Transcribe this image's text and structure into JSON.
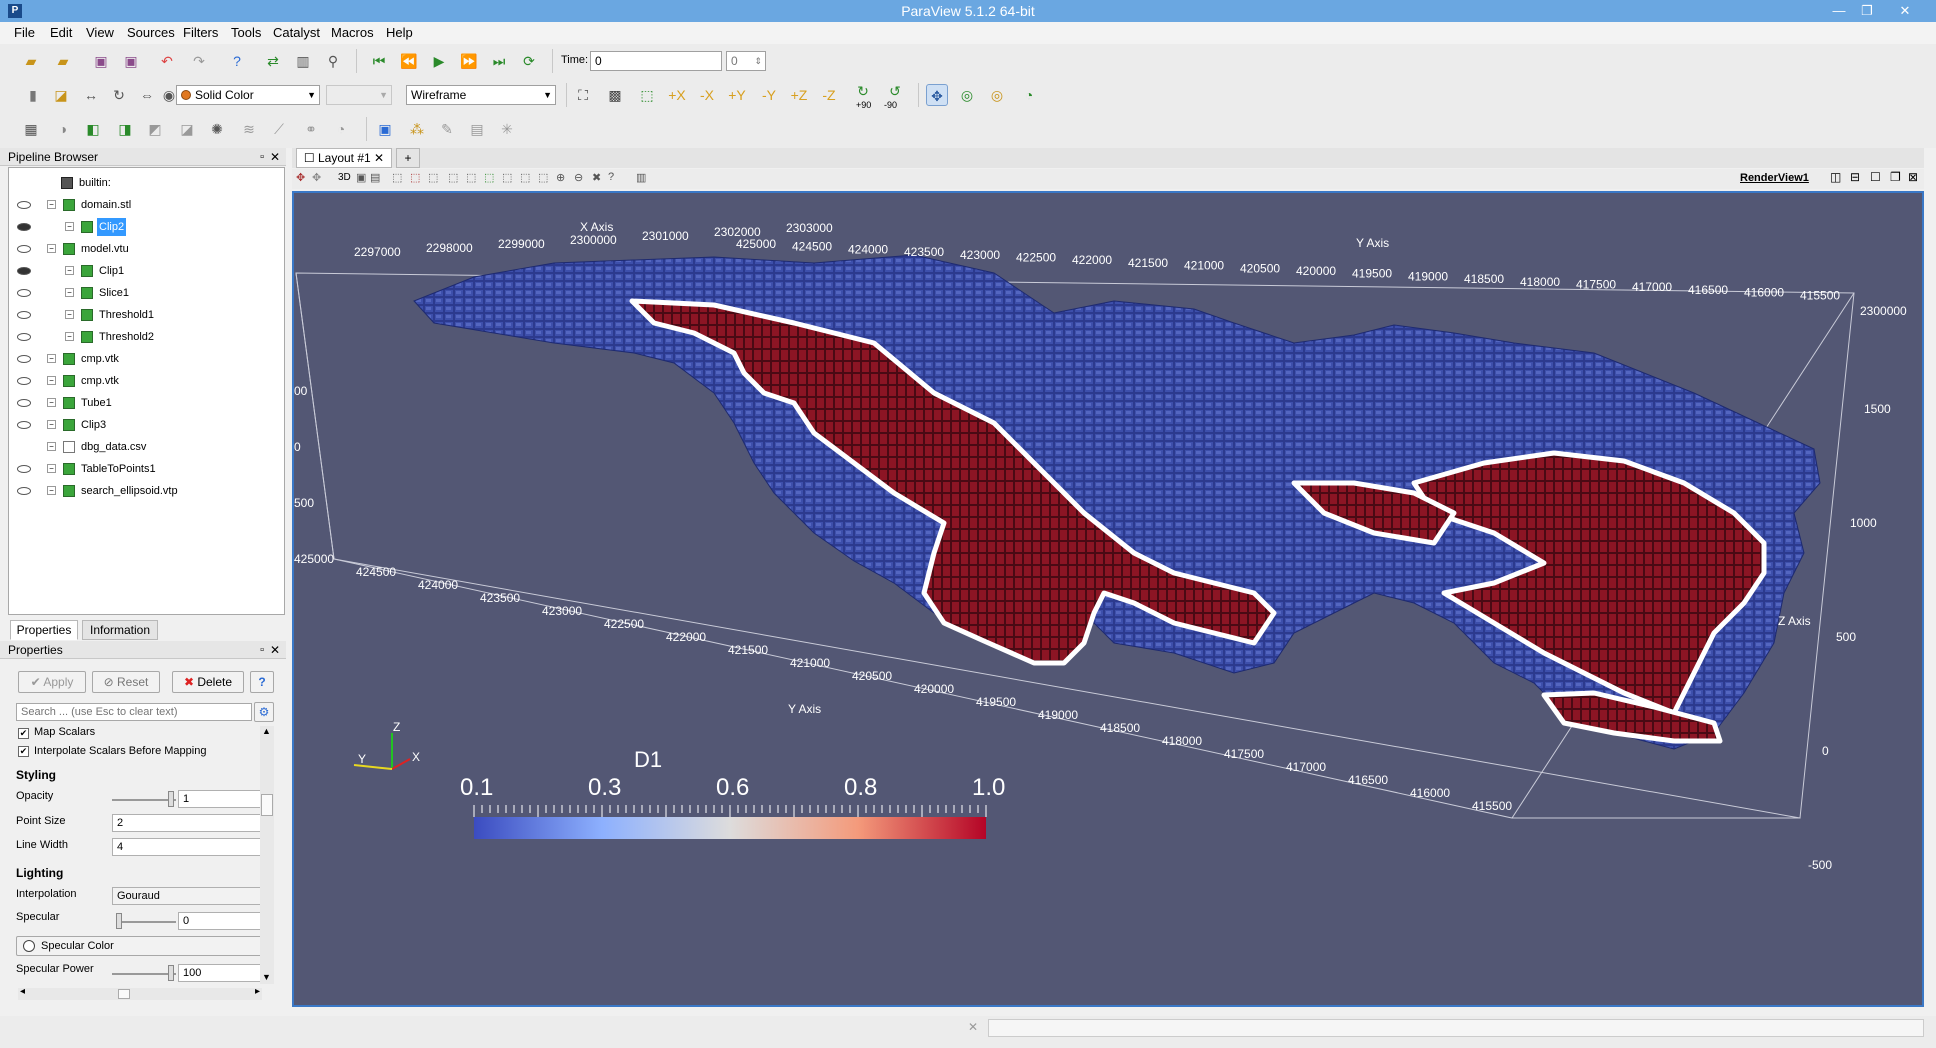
{
  "window": {
    "title": "ParaView 5.1.2 64-bit",
    "minimize": "—",
    "maximize": "❐",
    "close": "✕"
  },
  "menu": [
    "File",
    "Edit",
    "View",
    "Sources",
    "Filters",
    "Tools",
    "Catalyst",
    "Macros",
    "Help"
  ],
  "toolbar": {
    "time_label": "Time:",
    "time_value": "0",
    "time_step": "0",
    "color_by": "Solid Color",
    "representation": "Wireframe",
    "rot_plus": "+90",
    "rot_minus": "-90"
  },
  "pipeline": {
    "title": "Pipeline Browser",
    "items": [
      {
        "label": "builtin:",
        "indent": 0,
        "eye": "none"
      },
      {
        "label": "domain.stl",
        "indent": 1,
        "eye": "off"
      },
      {
        "label": "Clip2",
        "indent": 2,
        "eye": "on",
        "selected": true
      },
      {
        "label": "model.vtu",
        "indent": 1,
        "eye": "off"
      },
      {
        "label": "Clip1",
        "indent": 2,
        "eye": "on"
      },
      {
        "label": "Slice1",
        "indent": 2,
        "eye": "off"
      },
      {
        "label": "Threshold1",
        "indent": 2,
        "eye": "off"
      },
      {
        "label": "Threshold2",
        "indent": 2,
        "eye": "off"
      },
      {
        "label": "cmp.vtk",
        "indent": 1,
        "eye": "off"
      },
      {
        "label": "cmp.vtk",
        "indent": 1,
        "eye": "off"
      },
      {
        "label": "Tube1",
        "indent": 1,
        "eye": "off"
      },
      {
        "label": "Clip3",
        "indent": 1,
        "eye": "off"
      },
      {
        "label": "dbg_data.csv",
        "indent": 1,
        "eye": "none"
      },
      {
        "label": "TableToPoints1",
        "indent": 1,
        "eye": "off"
      },
      {
        "label": "search_ellipsoid.vtp",
        "indent": 1,
        "eye": "off"
      }
    ]
  },
  "tabs": {
    "properties": "Properties",
    "information": "Information"
  },
  "properties": {
    "title": "Properties",
    "apply": "Apply",
    "reset": "Reset",
    "delete": "Delete",
    "help": "?",
    "search_placeholder": "Search ... (use Esc to clear text)",
    "map_scalars": "Map Scalars",
    "interpolate": "Interpolate Scalars Before Mapping",
    "styling": "Styling",
    "opacity_label": "Opacity",
    "opacity": "1",
    "point_size_label": "Point Size",
    "point_size": "2",
    "line_width_label": "Line Width",
    "line_width": "4",
    "lighting": "Lighting",
    "interpolation_label": "Interpolation",
    "interpolation": "Gouraud",
    "specular_label": "Specular",
    "specular": "0",
    "specular_color": "Specular Color",
    "specular_power_label": "Specular Power",
    "specular_power": "100"
  },
  "layout": {
    "tab": "Layout #1",
    "add": "+",
    "view_name": "RenderView1",
    "mode_3d": "3D"
  },
  "render": {
    "x_axis_title": "X Axis",
    "y_axis_title": "Y Axis",
    "z_axis_title": "Z Axis",
    "x_ticks_top": [
      "2297000",
      "2298000",
      "2299000",
      "2300000",
      "2301000",
      "2302000",
      "2303000"
    ],
    "y_ticks_top": [
      "425000",
      "424500",
      "424000",
      "423500",
      "423000",
      "422500",
      "422000",
      "421500",
      "421000",
      "420500",
      "420000",
      "419500",
      "419000",
      "418500",
      "418000",
      "417500",
      "417000",
      "416500",
      "416000",
      "415500"
    ],
    "y_ticks_bottom": [
      "425000",
      "424500",
      "424000",
      "423500",
      "423000",
      "422500",
      "422000",
      "421500",
      "421000",
      "420500",
      "420000",
      "419500",
      "419000",
      "418500",
      "418000",
      "417500",
      "417000",
      "416500",
      "416000",
      "415500"
    ],
    "z_ticks_right": [
      "1500",
      "1000",
      "500",
      "0",
      "-500"
    ],
    "z_ticks_left": [
      "00",
      "0",
      "500"
    ],
    "right_x_label": "2300000",
    "orient": {
      "z": "Z",
      "y": "Y",
      "x": "X"
    },
    "colorbar": {
      "title": "D1",
      "labels": [
        "0.1",
        "0.3",
        "0.6",
        "0.8",
        "1.0"
      ]
    }
  },
  "status": {
    "close": "✕"
  }
}
